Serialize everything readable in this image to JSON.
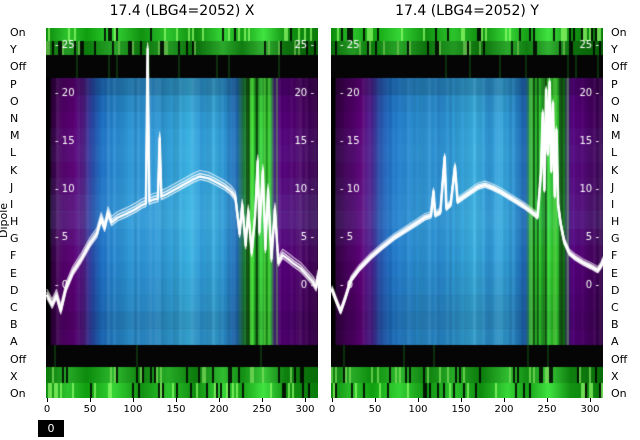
{
  "axis": {
    "ylabel": "Dipole",
    "x_ticks": [
      0,
      50,
      100,
      150,
      200,
      250,
      300
    ],
    "y_ticks": [
      25,
      20,
      15,
      10,
      5,
      0
    ]
  },
  "dipole_labels": [
    "On",
    "Y",
    "Off",
    "P",
    "O",
    "N",
    "M",
    "L",
    "K",
    "J",
    "I",
    "H",
    "G",
    "F",
    "E",
    "D",
    "C",
    "B",
    "A",
    "Off",
    "X",
    "On"
  ],
  "corner_box": "0",
  "palette": {
    "trace_color": "#ffffff",
    "black_band": "#050505",
    "green_stops": [
      [
        0.0,
        "#0b8a0b"
      ],
      [
        0.08,
        "#2ec42e"
      ],
      [
        0.15,
        "#0f9f0f"
      ],
      [
        0.25,
        "#35d435"
      ],
      [
        0.35,
        "#119211"
      ],
      [
        0.45,
        "#2cc42c"
      ],
      [
        0.55,
        "#0e8c0e"
      ],
      [
        0.65,
        "#38d838"
      ],
      [
        0.72,
        "#16a016"
      ],
      [
        0.8,
        "#41e441"
      ],
      [
        0.88,
        "#129212"
      ],
      [
        1.0,
        "#0a7c0a"
      ]
    ]
  },
  "chart_data": [
    {
      "type": "heatmap",
      "title": "17.4 (LBG4=2052) X",
      "xlabel": "",
      "ylabel": "Dipole",
      "x_ticks": [
        0,
        50,
        100,
        150,
        200,
        250,
        300
      ],
      "y_ticks": [
        25,
        20,
        15,
        10,
        5,
        0
      ],
      "seed": 7,
      "green_zone": [
        0.72,
        0.85
      ],
      "columns": [
        [
          0.0,
          "#000000"
        ],
        [
          0.013,
          "#000000"
        ],
        [
          0.02,
          "#30003e"
        ],
        [
          0.05,
          "#4c0062"
        ],
        [
          0.1,
          "#5e0078"
        ],
        [
          0.14,
          "#511e86"
        ],
        [
          0.17,
          "#2a49a8"
        ],
        [
          0.2,
          "#1f6ec4"
        ],
        [
          0.24,
          "#2584d0"
        ],
        [
          0.3,
          "#2d97d8"
        ],
        [
          0.36,
          "#2a8fd2"
        ],
        [
          0.42,
          "#2f9ad8"
        ],
        [
          0.48,
          "#34a5dc"
        ],
        [
          0.53,
          "#3cb4e4"
        ],
        [
          0.57,
          "#2f9ad8"
        ],
        [
          0.62,
          "#37aade"
        ],
        [
          0.66,
          "#2d93d4"
        ],
        [
          0.7,
          "#1d66b4"
        ],
        [
          0.725,
          "#156a3a"
        ],
        [
          0.74,
          "#1da81d"
        ],
        [
          0.76,
          "#2fd42f"
        ],
        [
          0.775,
          "#0c7c0c"
        ],
        [
          0.79,
          "#39e039"
        ],
        [
          0.81,
          "#128c12"
        ],
        [
          0.825,
          "#2cc42c"
        ],
        [
          0.84,
          "#3a1470"
        ],
        [
          0.86,
          "#5a0080"
        ],
        [
          0.9,
          "#520074"
        ],
        [
          0.95,
          "#460060"
        ],
        [
          1.0,
          "#360048"
        ]
      ],
      "row_shades": [
        -0.2,
        -0.08,
        -0.02,
        0.03,
        0.05,
        0.02,
        0.06,
        0.1,
        0.12,
        0.06,
        0.02,
        -0.02,
        -0.05,
        -0.08,
        -0.14,
        -0.1
      ],
      "trace_offsets": [
        [
          0,
          1,
          2.4
        ],
        [
          -3,
          0.85,
          1.5
        ],
        [
          -6,
          0.7,
          1.2
        ],
        [
          3,
          0.8,
          1.3
        ]
      ],
      "trace": [
        [
          0,
          -1.2
        ],
        [
          6,
          -2.2
        ],
        [
          11,
          -1.2
        ],
        [
          16,
          -2.8
        ],
        [
          22,
          -0.5
        ],
        [
          30,
          1.2
        ],
        [
          40,
          2.6
        ],
        [
          50,
          4.2
        ],
        [
          58,
          5.2
        ],
        [
          63,
          6.8
        ],
        [
          67,
          5.8
        ],
        [
          71,
          7.4
        ],
        [
          75,
          6.4
        ],
        [
          82,
          6.9
        ],
        [
          92,
          7.3
        ],
        [
          103,
          7.8
        ],
        [
          110,
          8.2
        ],
        [
          115,
          8.4
        ],
        [
          117,
          24.5
        ],
        [
          119,
          8.6
        ],
        [
          124,
          8.8
        ],
        [
          129,
          8.9
        ],
        [
          131,
          15.2
        ],
        [
          133,
          9.1
        ],
        [
          140,
          9.4
        ],
        [
          150,
          9.9
        ],
        [
          160,
          10.4
        ],
        [
          170,
          10.9
        ],
        [
          178,
          11.2
        ],
        [
          188,
          11.0
        ],
        [
          197,
          10.6
        ],
        [
          207,
          10.1
        ],
        [
          214,
          9.6
        ],
        [
          219,
          9.0
        ],
        [
          224,
          5.2
        ],
        [
          227,
          8.2
        ],
        [
          231,
          4.0
        ],
        [
          234,
          7.6
        ],
        [
          238,
          3.2
        ],
        [
          242,
          7.0
        ],
        [
          245,
          12.8
        ],
        [
          247,
          5.4
        ],
        [
          251,
          11.8
        ],
        [
          254,
          3.6
        ],
        [
          257,
          9.8
        ],
        [
          261,
          2.6
        ],
        [
          265,
          7.8
        ],
        [
          269,
          2.2
        ],
        [
          274,
          3.0
        ],
        [
          280,
          2.6
        ],
        [
          287,
          2.1
        ],
        [
          295,
          1.6
        ],
        [
          303,
          0.8
        ],
        [
          309,
          0.2
        ],
        [
          313,
          -0.4
        ],
        [
          315,
          0.8
        ]
      ]
    },
    {
      "type": "heatmap",
      "title": "17.4 (LBG4=2052) Y",
      "xlabel": "",
      "ylabel": "Dipole",
      "x_ticks": [
        0,
        50,
        100,
        150,
        200,
        250,
        300
      ],
      "y_ticks": [
        25,
        20,
        15,
        10,
        5,
        0
      ],
      "seed": 13,
      "green_zone": [
        0.72,
        0.87
      ],
      "columns": [
        [
          0.0,
          "#000000"
        ],
        [
          0.013,
          "#000000"
        ],
        [
          0.02,
          "#30003e"
        ],
        [
          0.06,
          "#4e0066"
        ],
        [
          0.11,
          "#5e0078"
        ],
        [
          0.15,
          "#4b2290"
        ],
        [
          0.18,
          "#2a55ae"
        ],
        [
          0.22,
          "#1f74c8"
        ],
        [
          0.27,
          "#2988d2"
        ],
        [
          0.33,
          "#2d94d6"
        ],
        [
          0.4,
          "#2a8cd0"
        ],
        [
          0.47,
          "#32a0da"
        ],
        [
          0.53,
          "#3ab0e2"
        ],
        [
          0.58,
          "#2e96d6"
        ],
        [
          0.63,
          "#36a8de"
        ],
        [
          0.68,
          "#2a8cd0"
        ],
        [
          0.715,
          "#1c60b0"
        ],
        [
          0.73,
          "#17823a"
        ],
        [
          0.745,
          "#22b422"
        ],
        [
          0.765,
          "#35dc35"
        ],
        [
          0.78,
          "#0e840e"
        ],
        [
          0.8,
          "#3ee43e"
        ],
        [
          0.82,
          "#16a016"
        ],
        [
          0.84,
          "#30cc30"
        ],
        [
          0.855,
          "#0c7c0c"
        ],
        [
          0.87,
          "#441878"
        ],
        [
          0.89,
          "#580080"
        ],
        [
          0.93,
          "#500070"
        ],
        [
          0.97,
          "#44005e"
        ],
        [
          1.0,
          "#34004a"
        ]
      ],
      "row_shades": [
        -0.18,
        -0.06,
        -0.01,
        0.03,
        0.05,
        0.03,
        0.05,
        0.08,
        0.1,
        0.05,
        0.01,
        -0.03,
        -0.06,
        -0.1,
        -0.14,
        -0.1
      ],
      "trace_offsets": [
        [
          0,
          1,
          2.6
        ],
        [
          -2,
          0.9,
          1.5
        ],
        [
          2,
          0.9,
          1.5
        ],
        [
          -4,
          0.65,
          1.1
        ]
      ],
      "trace": [
        [
          0,
          -0.6
        ],
        [
          5,
          -1.8
        ],
        [
          10,
          -2.9
        ],
        [
          15,
          -1.6
        ],
        [
          22,
          0.4
        ],
        [
          32,
          1.6
        ],
        [
          45,
          2.8
        ],
        [
          58,
          3.8
        ],
        [
          72,
          4.8
        ],
        [
          86,
          5.6
        ],
        [
          98,
          6.3
        ],
        [
          108,
          6.9
        ],
        [
          115,
          7.1
        ],
        [
          118,
          9.6
        ],
        [
          120,
          7.2
        ],
        [
          126,
          7.5
        ],
        [
          131,
          13.2
        ],
        [
          133,
          7.9
        ],
        [
          138,
          8.3
        ],
        [
          143,
          12.2
        ],
        [
          146,
          8.6
        ],
        [
          152,
          9.0
        ],
        [
          160,
          9.5
        ],
        [
          170,
          10.1
        ],
        [
          178,
          10.3
        ],
        [
          187,
          10.0
        ],
        [
          196,
          9.6
        ],
        [
          205,
          9.1
        ],
        [
          214,
          8.6
        ],
        [
          223,
          8.1
        ],
        [
          232,
          7.5
        ],
        [
          239,
          7.0
        ],
        [
          243,
          11.6
        ],
        [
          245,
          17.8
        ],
        [
          247,
          9.8
        ],
        [
          249,
          20.2
        ],
        [
          251,
          13.6
        ],
        [
          253,
          21.0
        ],
        [
          255,
          11.8
        ],
        [
          257,
          18.8
        ],
        [
          259,
          9.2
        ],
        [
          261,
          16.0
        ],
        [
          263,
          8.2
        ],
        [
          266,
          6.2
        ],
        [
          270,
          4.4
        ],
        [
          276,
          3.2
        ],
        [
          283,
          2.7
        ],
        [
          292,
          2.2
        ],
        [
          301,
          1.8
        ],
        [
          309,
          1.4
        ],
        [
          313,
          1.9
        ],
        [
          315,
          2.4
        ]
      ]
    }
  ]
}
